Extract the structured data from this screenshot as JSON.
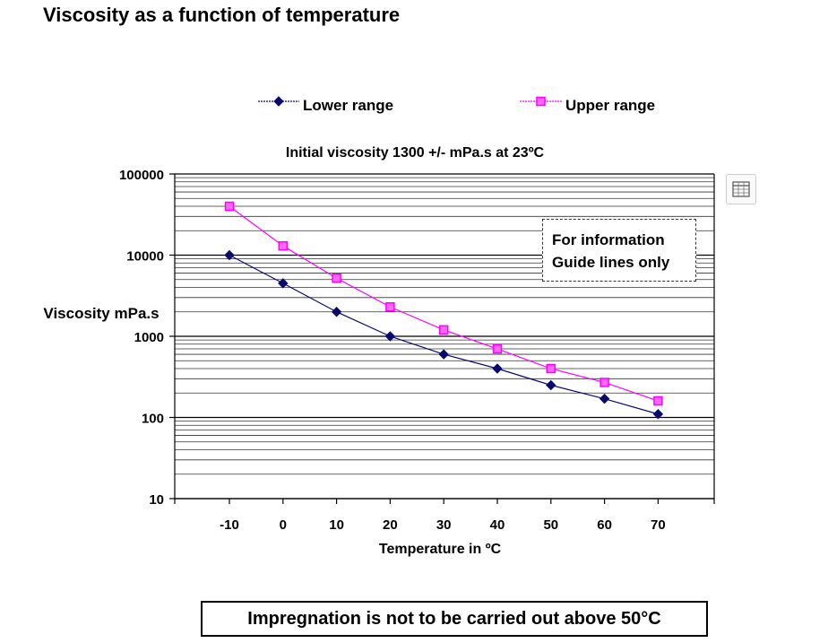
{
  "page": {
    "title": "Viscosity as a function of temperature"
  },
  "chart_data": {
    "type": "line",
    "title": "Initial viscosity 1300 +/- mPa.s at 23ºC",
    "xlabel": "Temperature  in ºC",
    "ylabel": "Viscosity mPa.s",
    "y_scale": "log",
    "ylim": [
      10,
      100000
    ],
    "y_ticks": [
      10,
      100,
      1000,
      10000,
      100000
    ],
    "y_tick_labels": [
      "10",
      "100",
      "1000",
      "10000",
      "100000"
    ],
    "x": [
      -10,
      0,
      10,
      20,
      30,
      40,
      50,
      60,
      70
    ],
    "x_tick_labels": [
      "-10",
      "0",
      "10",
      "20",
      "30",
      "40",
      "50",
      "60",
      "70"
    ],
    "grid": true,
    "legend_position": "top",
    "series": [
      {
        "name": "Lower range",
        "color": "#0a0a6e",
        "marker": "diamond",
        "values": [
          10000,
          4500,
          2000,
          1000,
          600,
          400,
          250,
          170,
          110
        ]
      },
      {
        "name": "Upper range",
        "color": "#ff00ff",
        "marker": "square",
        "values": [
          40000,
          13000,
          5200,
          2300,
          1200,
          700,
          400,
          270,
          160
        ]
      }
    ]
  },
  "note": {
    "line1": "For information",
    "line2": "Guide lines only"
  },
  "footer": {
    "text": "Impregnation is not to be carried out above 50°C"
  },
  "toolbar": {
    "table_icon": "table-icon"
  }
}
